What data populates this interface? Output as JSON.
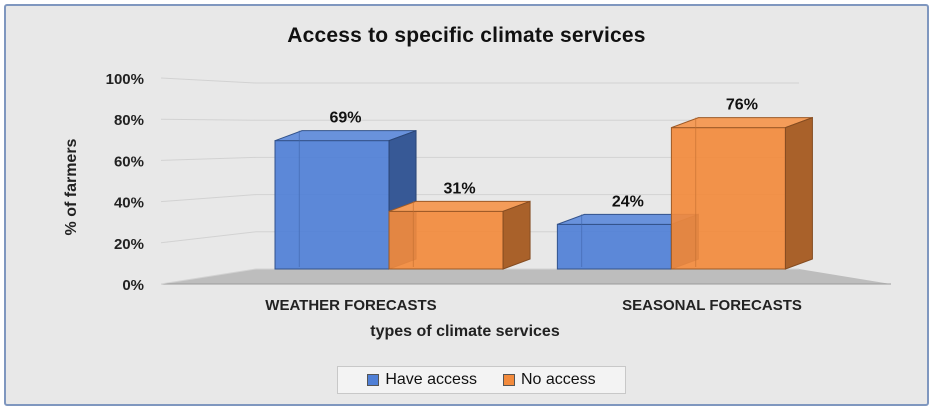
{
  "chart_data": {
    "type": "bar",
    "title": "Access to specific climate services",
    "xlabel": "types of climate services",
    "ylabel": "% of farmers",
    "categories": [
      "WEATHER FORECASTS",
      "SEASONAL FORECASTS"
    ],
    "series": [
      {
        "name": "Have access",
        "values": [
          69,
          24
        ],
        "labels": [
          "69%",
          "24%"
        ],
        "color": "#4f7fd6"
      },
      {
        "name": "No access",
        "values": [
          31,
          76
        ],
        "labels": [
          "31%",
          "76%"
        ],
        "color": "#f28a3c"
      }
    ],
    "ylim": [
      0,
      100
    ],
    "yticks": [
      "0%",
      "20%",
      "40%",
      "60%",
      "80%",
      "100%"
    ],
    "grid": true,
    "legend_position": "bottom",
    "style": "3d-clustered-column"
  }
}
